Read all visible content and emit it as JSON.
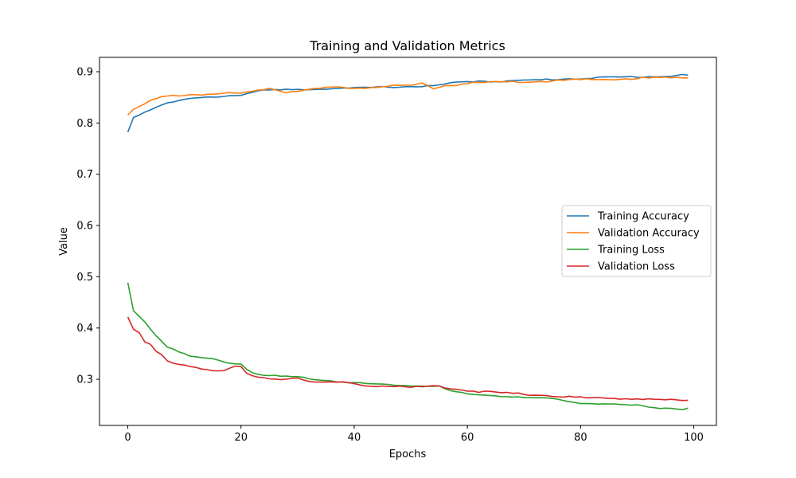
{
  "chart_data": {
    "type": "line",
    "title": "Training and Validation Metrics",
    "xlabel": "Epochs",
    "ylabel": "Value",
    "xlim": [
      -5,
      104
    ],
    "ylim": [
      0.21,
      0.928
    ],
    "xticks": [
      0,
      20,
      40,
      60,
      80,
      100
    ],
    "yticks": [
      0.3,
      0.4,
      0.5,
      0.6,
      0.7,
      0.8,
      0.9
    ],
    "grid": false,
    "legend_position": "center-right",
    "series": [
      {
        "name": "Training Accuracy",
        "color": "#1f77b4",
        "anchors": [
          [
            0,
            0.782
          ],
          [
            1,
            0.811
          ],
          [
            2,
            0.816
          ],
          [
            3,
            0.822
          ],
          [
            5,
            0.831
          ],
          [
            7,
            0.84
          ],
          [
            9,
            0.843
          ],
          [
            10,
            0.846
          ],
          [
            13,
            0.849
          ],
          [
            15,
            0.85
          ],
          [
            17,
            0.853
          ],
          [
            20,
            0.854
          ],
          [
            22,
            0.861
          ],
          [
            25,
            0.864
          ],
          [
            30,
            0.865
          ],
          [
            35,
            0.867
          ],
          [
            40,
            0.868
          ],
          [
            45,
            0.87
          ],
          [
            50,
            0.871
          ],
          [
            55,
            0.873
          ],
          [
            57,
            0.878
          ],
          [
            60,
            0.88
          ],
          [
            62,
            0.882
          ],
          [
            65,
            0.881
          ],
          [
            70,
            0.883
          ],
          [
            75,
            0.885
          ],
          [
            80,
            0.887
          ],
          [
            85,
            0.889
          ],
          [
            90,
            0.89
          ],
          [
            95,
            0.891
          ],
          [
            98,
            0.894
          ],
          [
            99,
            0.893
          ]
        ],
        "noise": 0.0015
      },
      {
        "name": "Validation Accuracy",
        "color": "#ff7f0e",
        "anchors": [
          [
            0,
            0.818
          ],
          [
            1,
            0.829
          ],
          [
            2,
            0.831
          ],
          [
            4,
            0.842
          ],
          [
            6,
            0.85
          ],
          [
            10,
            0.855
          ],
          [
            15,
            0.857
          ],
          [
            20,
            0.857
          ],
          [
            23,
            0.864
          ],
          [
            25,
            0.868
          ],
          [
            27,
            0.864
          ],
          [
            28,
            0.86
          ],
          [
            30,
            0.864
          ],
          [
            35,
            0.868
          ],
          [
            40,
            0.869
          ],
          [
            45,
            0.871
          ],
          [
            50,
            0.872
          ],
          [
            52,
            0.877
          ],
          [
            54,
            0.868
          ],
          [
            56,
            0.873
          ],
          [
            60,
            0.877
          ],
          [
            65,
            0.879
          ],
          [
            70,
            0.88
          ],
          [
            75,
            0.882
          ],
          [
            80,
            0.884
          ],
          [
            85,
            0.885
          ],
          [
            90,
            0.887
          ],
          [
            95,
            0.888
          ],
          [
            99,
            0.888
          ]
        ],
        "noise": 0.0025
      },
      {
        "name": "Training Loss",
        "color": "#2ca02c",
        "anchors": [
          [
            0,
            0.488
          ],
          [
            1,
            0.433
          ],
          [
            3,
            0.412
          ],
          [
            5,
            0.385
          ],
          [
            7,
            0.364
          ],
          [
            9,
            0.355
          ],
          [
            11,
            0.344
          ],
          [
            15,
            0.34
          ],
          [
            17,
            0.333
          ],
          [
            20,
            0.331
          ],
          [
            21,
            0.32
          ],
          [
            22,
            0.313
          ],
          [
            25,
            0.307
          ],
          [
            30,
            0.304
          ],
          [
            35,
            0.298
          ],
          [
            40,
            0.293
          ],
          [
            45,
            0.29
          ],
          [
            50,
            0.288
          ],
          [
            55,
            0.286
          ],
          [
            57,
            0.277
          ],
          [
            60,
            0.271
          ],
          [
            65,
            0.268
          ],
          [
            70,
            0.264
          ],
          [
            75,
            0.262
          ],
          [
            80,
            0.254
          ],
          [
            85,
            0.251
          ],
          [
            90,
            0.249
          ],
          [
            93,
            0.245
          ],
          [
            98,
            0.242
          ],
          [
            99,
            0.243
          ]
        ],
        "noise": 0.0015
      },
      {
        "name": "Validation Loss",
        "color": "#d62728",
        "anchors": [
          [
            0,
            0.423
          ],
          [
            1,
            0.398
          ],
          [
            2,
            0.392
          ],
          [
            3,
            0.373
          ],
          [
            4,
            0.368
          ],
          [
            5,
            0.354
          ],
          [
            6,
            0.346
          ],
          [
            7,
            0.335
          ],
          [
            9,
            0.328
          ],
          [
            12,
            0.324
          ],
          [
            14,
            0.32
          ],
          [
            15,
            0.318
          ],
          [
            17,
            0.318
          ],
          [
            19,
            0.324
          ],
          [
            20,
            0.323
          ],
          [
            21,
            0.311
          ],
          [
            22,
            0.305
          ],
          [
            25,
            0.3
          ],
          [
            28,
            0.301
          ],
          [
            30,
            0.304
          ],
          [
            32,
            0.296
          ],
          [
            34,
            0.293
          ],
          [
            38,
            0.294
          ],
          [
            40,
            0.292
          ],
          [
            42,
            0.288
          ],
          [
            45,
            0.287
          ],
          [
            48,
            0.286
          ],
          [
            50,
            0.284
          ],
          [
            53,
            0.286
          ],
          [
            55,
            0.288
          ],
          [
            57,
            0.282
          ],
          [
            60,
            0.278
          ],
          [
            65,
            0.274
          ],
          [
            70,
            0.271
          ],
          [
            75,
            0.268
          ],
          [
            77,
            0.267
          ],
          [
            80,
            0.264
          ],
          [
            85,
            0.263
          ],
          [
            90,
            0.262
          ],
          [
            95,
            0.26
          ],
          [
            99,
            0.258
          ]
        ],
        "noise": 0.002
      }
    ]
  }
}
